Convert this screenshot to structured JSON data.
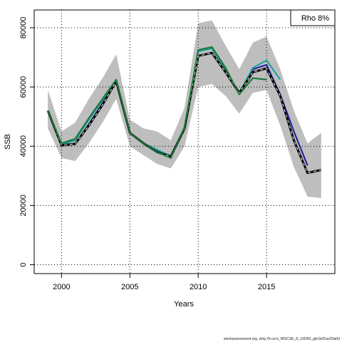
{
  "chart_data": {
    "type": "line",
    "xlabel": "Years",
    "ylabel": "SSB",
    "xlim": [
      1998,
      2020
    ],
    "ylim": [
      -3000,
      86000
    ],
    "x_ticks": [
      2000,
      2005,
      2010,
      2015
    ],
    "y_ticks": [
      0,
      20000,
      40000,
      60000,
      80000
    ],
    "grid": "dotted",
    "legend": {
      "text": "Rho 8%",
      "placement": "top-right"
    },
    "footer": "stockassessment.org, whg.7b-ce-k_WGCSE_8_r18350_gitc9c81ac53a0d",
    "colors": {
      "band": "#bebebe",
      "base": "#000000",
      "dash": "#ffffff",
      "peel_blue": "#1a1a9a",
      "peel_teal": "#1aa0a0",
      "peel_green": "#1a7a3a"
    },
    "confidence_band": {
      "x": [
        1999,
        2000,
        2001,
        2002,
        2003,
        2004,
        2005,
        2006,
        2007,
        2008,
        2009,
        2010,
        2011,
        2012,
        2013,
        2014,
        2015,
        2016,
        2017,
        2018,
        2019
      ],
      "upper": [
        59000,
        45000,
        48000,
        56000,
        63000,
        71000,
        49000,
        46000,
        45000,
        42000,
        53000,
        81500,
        82500,
        74000,
        66000,
        75000,
        77000,
        66000,
        52000,
        41000,
        44500
      ],
      "lower": [
        46000,
        36000,
        35000,
        41000,
        48000,
        56000,
        40000,
        37000,
        34000,
        32500,
        40000,
        60000,
        61000,
        57000,
        51000,
        58000,
        59000,
        47000,
        33000,
        23000,
        22500
      ]
    },
    "series": [
      {
        "role": "base",
        "x": [
          1999,
          2000,
          2001,
          2002,
          2003,
          2004,
          2005,
          2006,
          2007,
          2008,
          2009,
          2010,
          2011,
          2012,
          2013,
          2014,
          2015,
          2016,
          2017,
          2018,
          2019
        ],
        "values": [
          52000,
          40300,
          40800,
          47000,
          54000,
          62000,
          44500,
          41000,
          38000,
          36500,
          46000,
          70500,
          71500,
          65000,
          58000,
          65000,
          66300,
          57000,
          42000,
          31000,
          32000
        ]
      },
      {
        "role": "peel_blue",
        "x": [
          1999,
          2000,
          2001,
          2002,
          2003,
          2004,
          2005,
          2006,
          2007,
          2008,
          2009,
          2010,
          2011,
          2012,
          2013,
          2014,
          2015,
          2016,
          2017,
          2018
        ],
        "values": [
          52000,
          40300,
          40800,
          47500,
          54500,
          62000,
          44500,
          41000,
          38500,
          36800,
          46000,
          70500,
          71500,
          65000,
          58000,
          66000,
          67500,
          57500,
          45000,
          33500
        ]
      },
      {
        "role": "peel_teal",
        "x": [
          1999,
          2000,
          2001,
          2002,
          2003,
          2004,
          2005,
          2006,
          2007,
          2008,
          2009,
          2010,
          2011,
          2012,
          2013,
          2014,
          2015,
          2016
        ],
        "values": [
          52000,
          40500,
          42000,
          49000,
          55500,
          62500,
          44500,
          41000,
          38800,
          36700,
          46500,
          72000,
          73000,
          66000,
          58000,
          66500,
          69000,
          62500
        ]
      },
      {
        "role": "peel_green",
        "x": [
          1999,
          2000,
          2001,
          2002,
          2003,
          2004,
          2005,
          2006,
          2007,
          2008,
          2009,
          2010,
          2011,
          2012,
          2013,
          2014,
          2015
        ],
        "values": [
          52000,
          41000,
          42500,
          49500,
          56000,
          62500,
          44500,
          41000,
          38000,
          36000,
          46500,
          72500,
          73500,
          66500,
          57500,
          63000,
          62500
        ]
      }
    ]
  }
}
